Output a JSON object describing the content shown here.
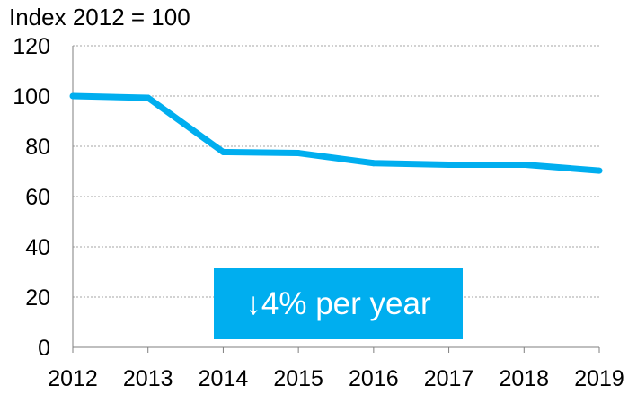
{
  "unit_label": "Index 2012 = 100",
  "callout": {
    "text": "↓4% per year",
    "background": "#00AEEF",
    "text_color": "#FFFFFF"
  },
  "colors": {
    "line": "#00AEEF",
    "grid": "#A6A6A6",
    "axis": "#7F7F7F",
    "text": "#000000"
  },
  "chart_data": {
    "type": "line",
    "title": "",
    "xlabel": "",
    "ylabel": "Index 2012 = 100",
    "categories": [
      "2012",
      "2013",
      "2014",
      "2015",
      "2016",
      "2017",
      "2018",
      "2019"
    ],
    "series": [
      {
        "values": [
          100,
          99.3,
          77.7,
          77.3,
          73.3,
          72.7,
          72.7,
          70.3
        ]
      }
    ],
    "ylim": [
      0,
      120
    ],
    "yticks": [
      0,
      20,
      40,
      60,
      80,
      100,
      120
    ],
    "grid": true
  }
}
